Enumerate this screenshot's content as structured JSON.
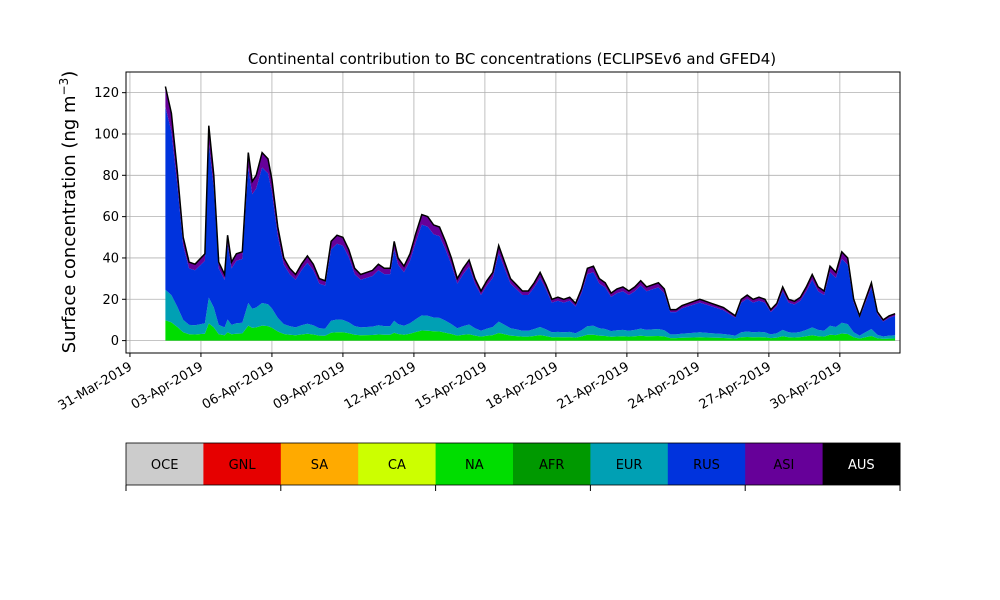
{
  "chart_data": {
    "type": "area",
    "title": "Continental contribution to BC concentrations (ECLIPSEv6 and GFED4)",
    "ylabel": "Surface concentration (ng m",
    "ylabel_sup": "−3",
    "ylabel_end": ")",
    "xlim": [
      "2019-03-30T20:00",
      "2019-05-02T13:00"
    ],
    "ylim": [
      -6,
      130
    ],
    "yticks": [
      0,
      20,
      40,
      60,
      80,
      100,
      120
    ],
    "xticks": [
      {
        "date": "2019-03-31",
        "label": "31-Mar-2019"
      },
      {
        "date": "2019-04-03",
        "label": "03-Apr-2019"
      },
      {
        "date": "2019-04-06",
        "label": "06-Apr-2019"
      },
      {
        "date": "2019-04-09",
        "label": "09-Apr-2019"
      },
      {
        "date": "2019-04-12",
        "label": "12-Apr-2019"
      },
      {
        "date": "2019-04-15",
        "label": "15-Apr-2019"
      },
      {
        "date": "2019-04-18",
        "label": "18-Apr-2019"
      },
      {
        "date": "2019-04-21",
        "label": "21-Apr-2019"
      },
      {
        "date": "2019-04-24",
        "label": "24-Apr-2019"
      },
      {
        "date": "2019-04-27",
        "label": "27-Apr-2019"
      },
      {
        "date": "2019-04-30",
        "label": "30-Apr-2019"
      }
    ],
    "grid": true,
    "legend": {
      "placement": "bottom-colorbar",
      "entries": [
        {
          "name": "OCE",
          "color": "#cccccc",
          "text_color": "#000000"
        },
        {
          "name": "GNL",
          "color": "#e60000",
          "text_color": "#000000"
        },
        {
          "name": "SA",
          "color": "#ffaa00",
          "text_color": "#000000"
        },
        {
          "name": "CA",
          "color": "#ccff00",
          "text_color": "#000000"
        },
        {
          "name": "NA",
          "color": "#00dd00",
          "text_color": "#000000"
        },
        {
          "name": "AFR",
          "color": "#009900",
          "text_color": "#000000"
        },
        {
          "name": "EUR",
          "color": "#00a0b4",
          "text_color": "#000000"
        },
        {
          "name": "RUS",
          "color": "#0033dd",
          "text_color": "#000000"
        },
        {
          "name": "ASI",
          "color": "#660099",
          "text_color": "#000000"
        },
        {
          "name": "AUS",
          "color": "#000000",
          "text_color": "#ffffff"
        }
      ]
    },
    "total": [
      [
        "2019-04-01T12:00",
        123
      ],
      [
        "2019-04-01T18:00",
        110
      ],
      [
        "2019-04-02T00:00",
        82
      ],
      [
        "2019-04-02T06:00",
        50
      ],
      [
        "2019-04-02T12:00",
        38
      ],
      [
        "2019-04-02T18:00",
        37
      ],
      [
        "2019-04-03T00:00",
        40
      ],
      [
        "2019-04-03T04:00",
        42
      ],
      [
        "2019-04-03T08:00",
        104
      ],
      [
        "2019-04-03T13:00",
        80
      ],
      [
        "2019-04-03T18:00",
        38
      ],
      [
        "2019-04-04T00:00",
        32
      ],
      [
        "2019-04-04T03:00",
        51
      ],
      [
        "2019-04-04T07:00",
        38
      ],
      [
        "2019-04-04T12:00",
        42
      ],
      [
        "2019-04-04T18:00",
        43
      ],
      [
        "2019-04-05T00:00",
        91
      ],
      [
        "2019-04-05T04:00",
        77
      ],
      [
        "2019-04-05T08:00",
        80
      ],
      [
        "2019-04-05T14:00",
        91
      ],
      [
        "2019-04-05T20:00",
        88
      ],
      [
        "2019-04-06T00:00",
        78
      ],
      [
        "2019-04-06T06:00",
        55
      ],
      [
        "2019-04-06T12:00",
        40
      ],
      [
        "2019-04-06T18:00",
        35
      ],
      [
        "2019-04-07T00:00",
        32
      ],
      [
        "2019-04-07T06:00",
        37
      ],
      [
        "2019-04-07T12:00",
        41
      ],
      [
        "2019-04-07T18:00",
        37
      ],
      [
        "2019-04-08T00:00",
        30
      ],
      [
        "2019-04-08T06:00",
        29
      ],
      [
        "2019-04-08T12:00",
        48
      ],
      [
        "2019-04-08T18:00",
        51
      ],
      [
        "2019-04-09T00:00",
        50
      ],
      [
        "2019-04-09T06:00",
        44
      ],
      [
        "2019-04-09T12:00",
        35
      ],
      [
        "2019-04-09T18:00",
        32
      ],
      [
        "2019-04-10T00:00",
        33
      ],
      [
        "2019-04-10T06:00",
        34
      ],
      [
        "2019-04-10T12:00",
        37
      ],
      [
        "2019-04-10T18:00",
        35
      ],
      [
        "2019-04-11T00:00",
        35
      ],
      [
        "2019-04-11T04:00",
        48
      ],
      [
        "2019-04-11T08:00",
        40
      ],
      [
        "2019-04-11T14:00",
        36
      ],
      [
        "2019-04-11T20:00",
        42
      ],
      [
        "2019-04-12T02:00",
        52
      ],
      [
        "2019-04-12T08:00",
        61
      ],
      [
        "2019-04-12T14:00",
        60
      ],
      [
        "2019-04-12T20:00",
        56
      ],
      [
        "2019-04-13T02:00",
        55
      ],
      [
        "2019-04-13T08:00",
        48
      ],
      [
        "2019-04-13T14:00",
        40
      ],
      [
        "2019-04-13T20:00",
        30
      ],
      [
        "2019-04-14T02:00",
        35
      ],
      [
        "2019-04-14T08:00",
        39
      ],
      [
        "2019-04-14T14:00",
        30
      ],
      [
        "2019-04-14T20:00",
        24
      ],
      [
        "2019-04-15T02:00",
        29
      ],
      [
        "2019-04-15T08:00",
        33
      ],
      [
        "2019-04-15T14:00",
        46
      ],
      [
        "2019-04-15T20:00",
        38
      ],
      [
        "2019-04-16T02:00",
        30
      ],
      [
        "2019-04-16T08:00",
        27
      ],
      [
        "2019-04-16T14:00",
        24
      ],
      [
        "2019-04-16T20:00",
        24
      ],
      [
        "2019-04-17T02:00",
        28
      ],
      [
        "2019-04-17T08:00",
        33
      ],
      [
        "2019-04-17T14:00",
        27
      ],
      [
        "2019-04-17T20:00",
        20
      ],
      [
        "2019-04-18T02:00",
        21
      ],
      [
        "2019-04-18T08:00",
        20
      ],
      [
        "2019-04-18T14:00",
        21
      ],
      [
        "2019-04-18T20:00",
        18
      ],
      [
        "2019-04-19T02:00",
        25
      ],
      [
        "2019-04-19T08:00",
        35
      ],
      [
        "2019-04-19T14:00",
        36
      ],
      [
        "2019-04-19T20:00",
        30
      ],
      [
        "2019-04-20T02:00",
        28
      ],
      [
        "2019-04-20T08:00",
        23
      ],
      [
        "2019-04-20T14:00",
        25
      ],
      [
        "2019-04-20T20:00",
        26
      ],
      [
        "2019-04-21T02:00",
        24
      ],
      [
        "2019-04-21T08:00",
        26
      ],
      [
        "2019-04-21T14:00",
        29
      ],
      [
        "2019-04-21T20:00",
        26
      ],
      [
        "2019-04-22T02:00",
        27
      ],
      [
        "2019-04-22T08:00",
        28
      ],
      [
        "2019-04-22T14:00",
        25
      ],
      [
        "2019-04-22T20:00",
        15
      ],
      [
        "2019-04-23T02:00",
        15
      ],
      [
        "2019-04-23T08:00",
        17
      ],
      [
        "2019-04-23T14:00",
        18
      ],
      [
        "2019-04-23T20:00",
        19
      ],
      [
        "2019-04-24T02:00",
        20
      ],
      [
        "2019-04-24T08:00",
        19
      ],
      [
        "2019-04-24T14:00",
        18
      ],
      [
        "2019-04-24T20:00",
        17
      ],
      [
        "2019-04-25T02:00",
        16
      ],
      [
        "2019-04-25T08:00",
        14
      ],
      [
        "2019-04-25T14:00",
        12
      ],
      [
        "2019-04-25T20:00",
        20
      ],
      [
        "2019-04-26T02:00",
        22
      ],
      [
        "2019-04-26T08:00",
        20
      ],
      [
        "2019-04-26T14:00",
        21
      ],
      [
        "2019-04-26T20:00",
        20
      ],
      [
        "2019-04-27T02:00",
        15
      ],
      [
        "2019-04-27T08:00",
        18
      ],
      [
        "2019-04-27T14:00",
        26
      ],
      [
        "2019-04-27T20:00",
        20
      ],
      [
        "2019-04-28T02:00",
        19
      ],
      [
        "2019-04-28T08:00",
        21
      ],
      [
        "2019-04-28T14:00",
        26
      ],
      [
        "2019-04-28T20:00",
        32
      ],
      [
        "2019-04-29T02:00",
        26
      ],
      [
        "2019-04-29T08:00",
        24
      ],
      [
        "2019-04-29T14:00",
        36
      ],
      [
        "2019-04-29T20:00",
        33
      ],
      [
        "2019-04-30T02:00",
        43
      ],
      [
        "2019-04-30T08:00",
        40
      ],
      [
        "2019-04-30T14:00",
        20
      ],
      [
        "2019-04-30T20:00",
        12
      ],
      [
        "2019-05-01T02:00",
        20
      ],
      [
        "2019-05-01T08:00",
        28
      ],
      [
        "2019-05-01T14:00",
        14
      ],
      [
        "2019-05-01T20:00",
        10
      ],
      [
        "2019-05-02T02:00",
        12
      ],
      [
        "2019-05-02T08:00",
        13
      ]
    ],
    "series_fractions": [
      {
        "name": "NA",
        "value": 0.08
      },
      {
        "name": "EUR",
        "value": 0.12
      },
      {
        "name": "RUS",
        "value": 0.72
      },
      {
        "name": "ASI",
        "value": 0.08
      }
    ]
  }
}
